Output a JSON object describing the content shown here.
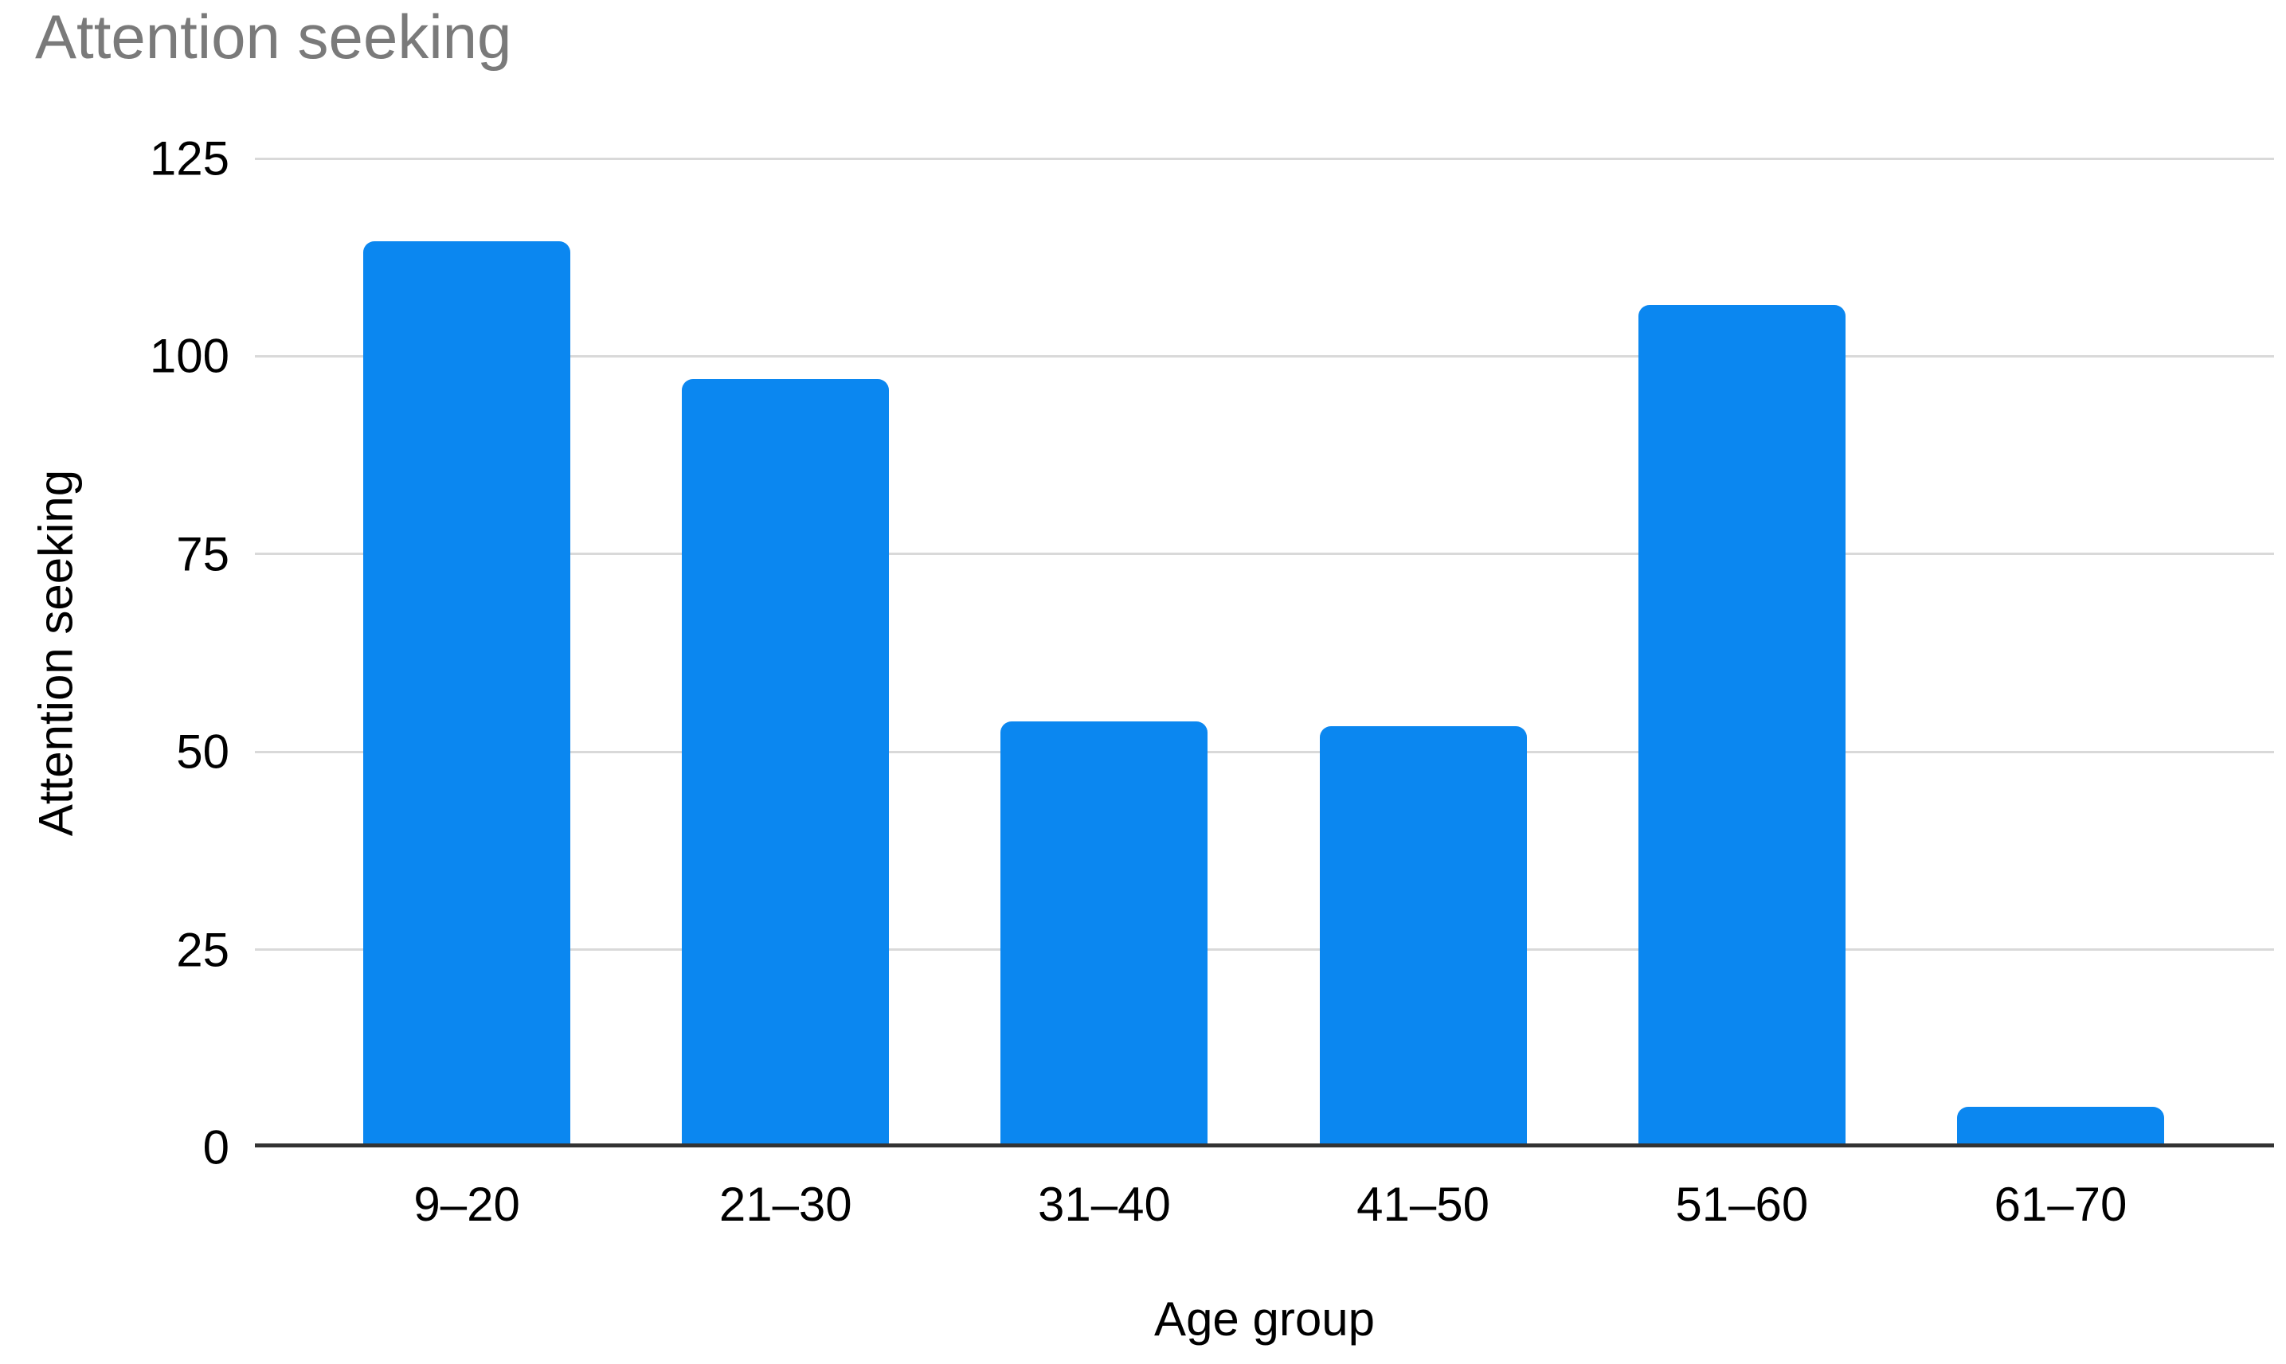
{
  "chart_data": {
    "type": "bar",
    "title": "Attention seeking",
    "xlabel": "Age group",
    "ylabel": "Attention seeking",
    "categories": [
      "9–20",
      "21–30",
      "31–40",
      "41–50",
      "51–60",
      "61–70"
    ],
    "values": [
      114.5,
      97.0,
      53.6,
      53.0,
      106.4,
      4.7
    ],
    "ylim": [
      0,
      125
    ],
    "yticks": [
      0,
      25,
      50,
      75,
      100,
      125
    ],
    "grid": true,
    "legend": false,
    "colors": {
      "bar": "#0b87f0",
      "title": "#7a7a7a",
      "gridline": "#d9d9d9",
      "axis_line": "#333333",
      "label": "#000000",
      "background": "#ffffff"
    }
  }
}
